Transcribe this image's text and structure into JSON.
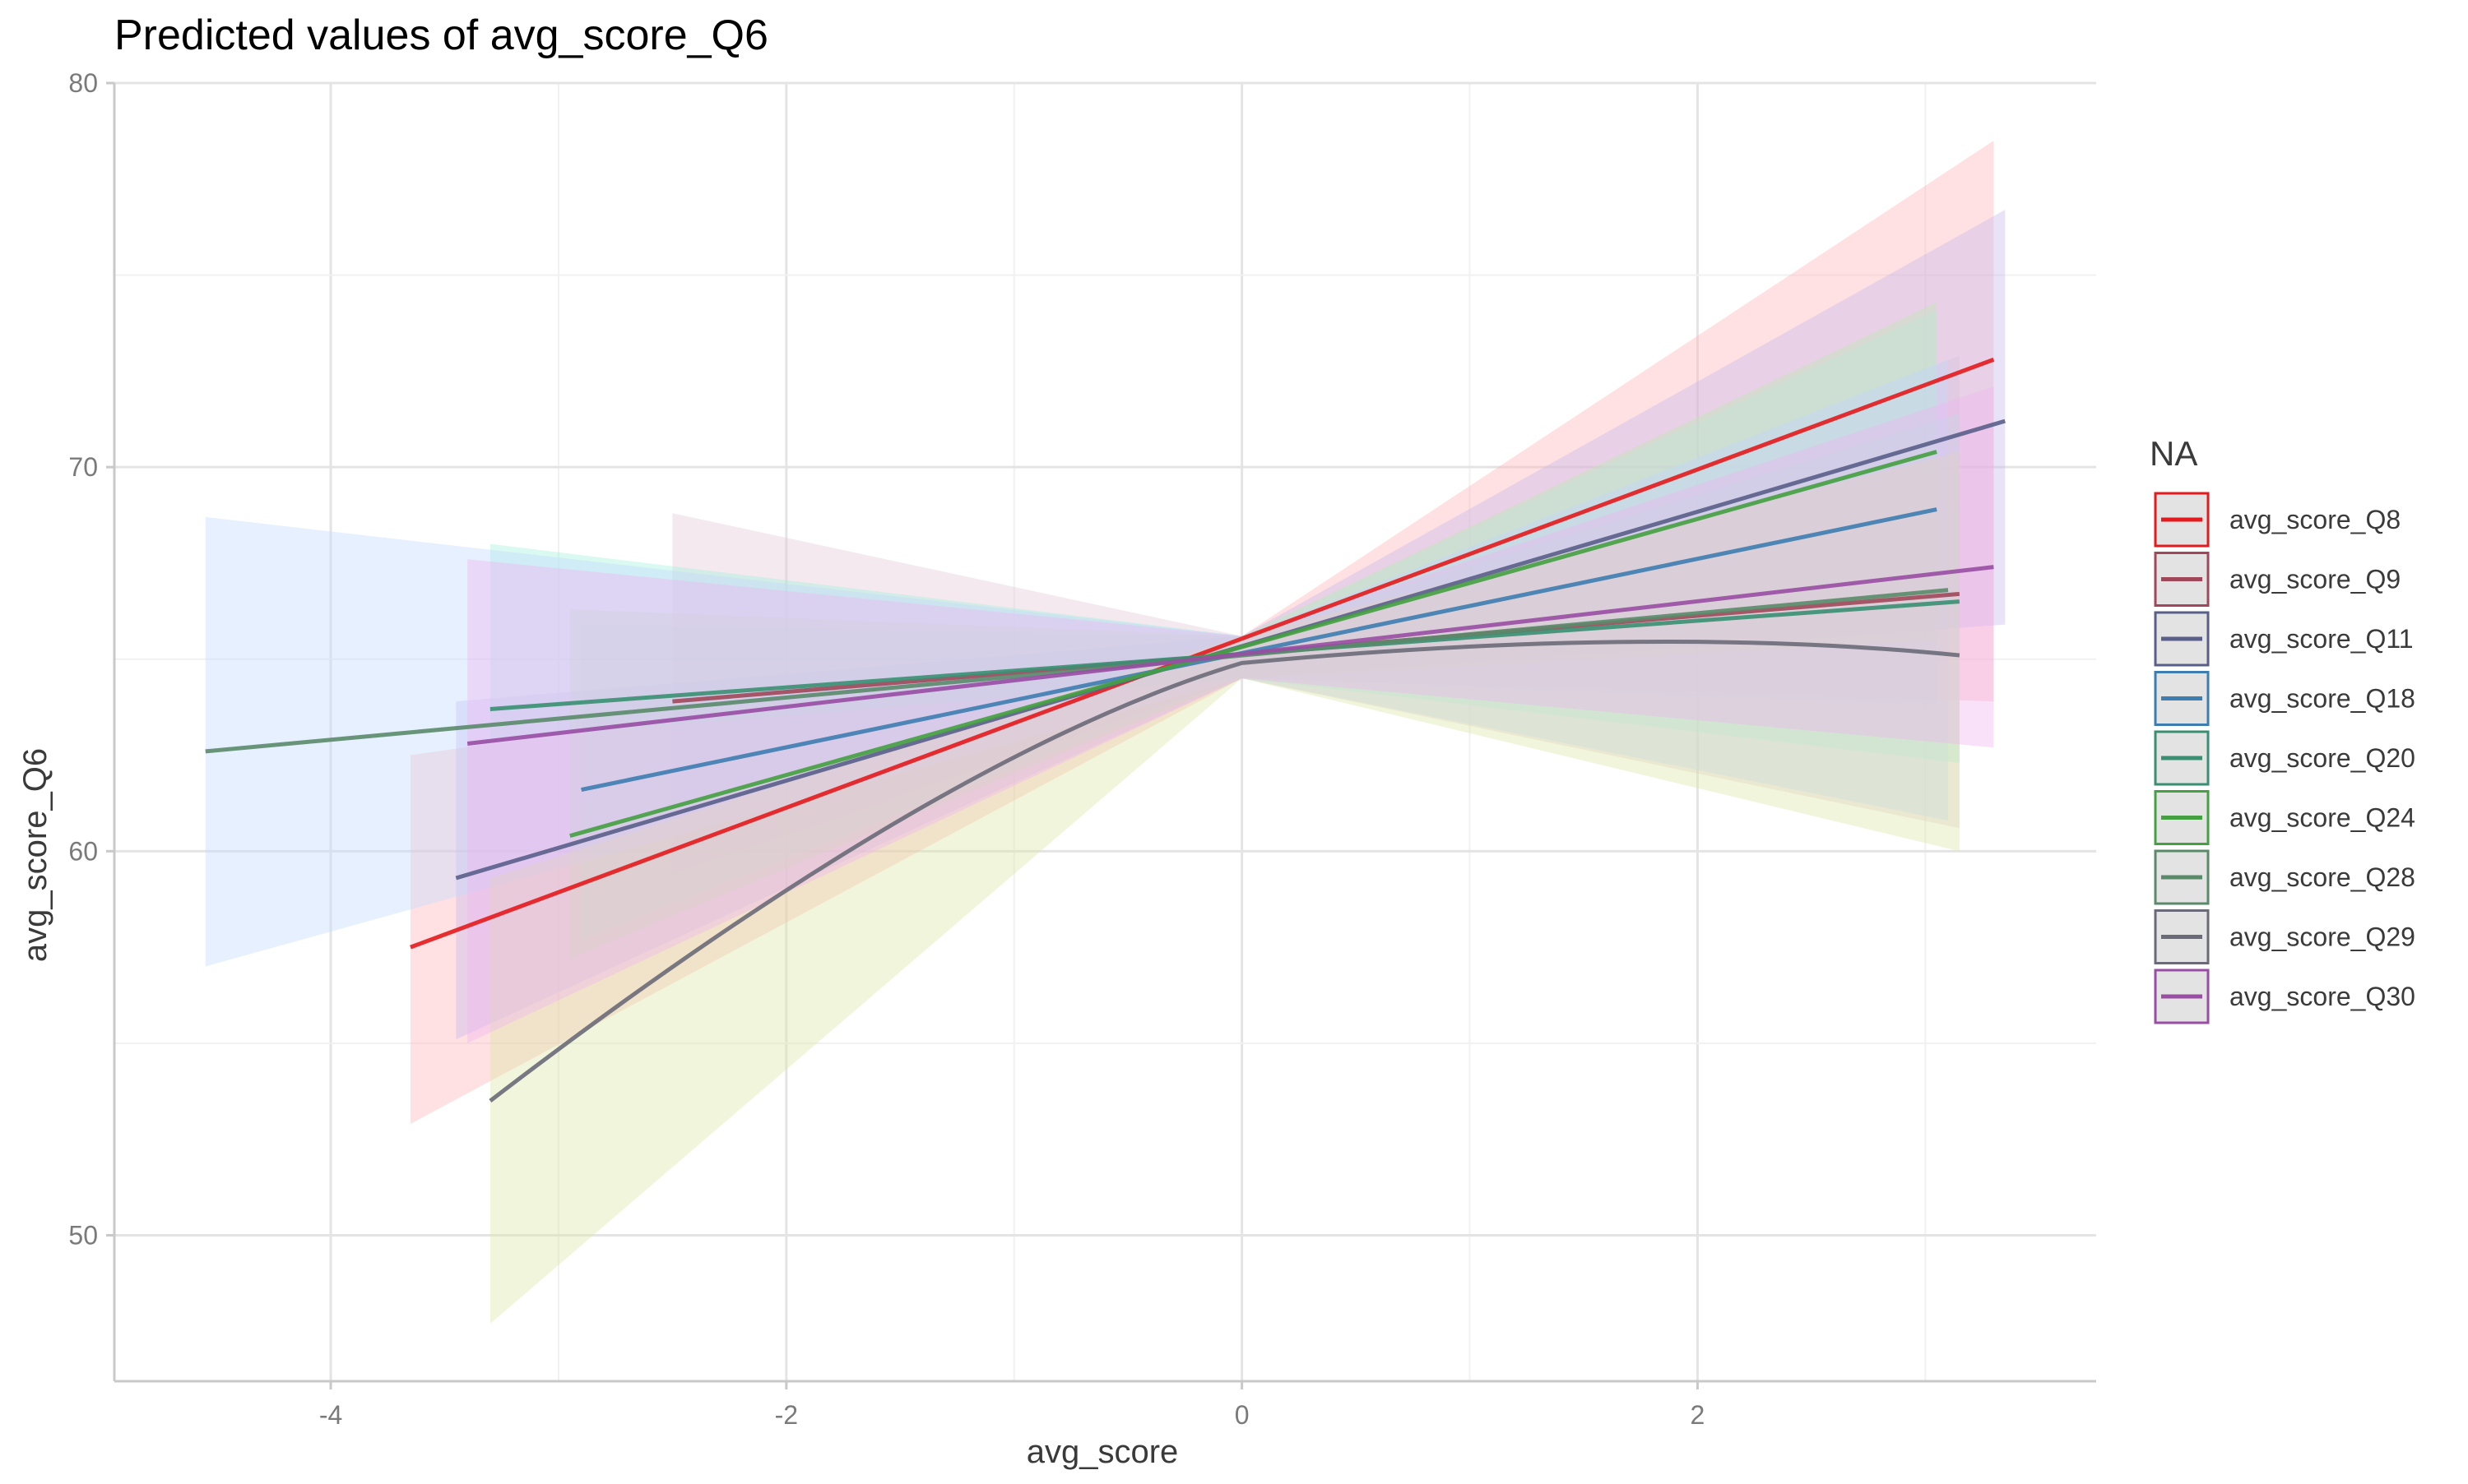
{
  "chart_data": {
    "type": "line",
    "title": "Predicted values of avg_score_Q6",
    "xlabel": "avg_score",
    "ylabel": "avg_score_Q6",
    "xlim": [
      -4.95,
      3.75
    ],
    "ylim": [
      46.2,
      80
    ],
    "x_ticks": [
      -4,
      -2,
      0,
      2
    ],
    "y_ticks": [
      50,
      60,
      70,
      80
    ],
    "grid": true,
    "legend": {
      "title": "NA",
      "placement": "right"
    },
    "series": [
      {
        "name": "avg_score_Q8",
        "color": "#e41a1c",
        "band_color": "#ffb3b8",
        "curve": 0,
        "x": [
          -3.65,
          3.3
        ],
        "y": [
          57.5,
          72.8
        ],
        "lower": [
          52.9,
          63.9
        ],
        "upper": [
          62.5,
          78.5
        ]
      },
      {
        "name": "avg_score_Q9",
        "color": "#a0485a",
        "band_color": "#e0c8d4",
        "curve": 0,
        "x": [
          -2.5,
          3.15
        ],
        "y": [
          63.9,
          66.7
        ],
        "lower": [
          59.4,
          60.6
        ],
        "upper": [
          68.8,
          72.9
        ]
      },
      {
        "name": "avg_score_Q11",
        "color": "#5a5f8a",
        "band_color": "#c6b8ec",
        "curve": 0,
        "x": [
          -3.45,
          3.35
        ],
        "y": [
          59.3,
          71.2
        ],
        "lower": [
          55.1,
          65.9
        ],
        "upper": [
          63.9,
          76.7
        ]
      },
      {
        "name": "avg_score_Q18",
        "color": "#3d7db0",
        "band_color": "#c0e0f4",
        "curve": 0,
        "x": [
          -2.9,
          3.05
        ],
        "y": [
          61.6,
          68.9
        ],
        "lower": [
          57.7,
          63.8
        ],
        "upper": [
          65.9,
          74.1
        ]
      },
      {
        "name": "avg_score_Q20",
        "color": "#3a8f72",
        "band_color": "#a0f0dc",
        "curve": 0,
        "x": [
          -3.3,
          3.15
        ],
        "y": [
          63.7,
          66.5
        ],
        "lower": [
          62.9,
          62.3
        ],
        "upper": [
          68.0,
          71.4
        ]
      },
      {
        "name": "avg_score_Q24",
        "color": "#44a040",
        "band_color": "#bfe8b0",
        "curve": 0,
        "x": [
          -2.95,
          3.05
        ],
        "y": [
          60.4,
          70.4
        ],
        "lower": [
          57.2,
          65.5
        ],
        "upper": [
          66.3,
          74.3
        ]
      },
      {
        "name": "avg_score_Q28",
        "color": "#5a8a6a",
        "band_color": "#c4daff",
        "curve": 0,
        "x": [
          -4.55,
          3.1
        ],
        "y": [
          62.6,
          66.8
        ],
        "lower": [
          57.0,
          60.8
        ],
        "upper": [
          68.7,
          72.8
        ]
      },
      {
        "name": "avg_score_Q29",
        "color": "#6a6a78",
        "band_color": "#dde5a6",
        "curve": 1,
        "x": [
          -3.3,
          3.15
        ],
        "y": [
          53.5,
          65.1
        ],
        "lower": [
          47.7,
          60.0
        ],
        "upper": [
          59.3,
          70.4
        ]
      },
      {
        "name": "avg_score_Q30",
        "color": "#984ea3",
        "band_color": "#f0b4f0",
        "curve": 0,
        "x": [
          -3.4,
          3.3
        ],
        "y": [
          62.8,
          67.4
        ],
        "lower": [
          55.0,
          62.7
        ],
        "upper": [
          67.6,
          72.1
        ]
      }
    ]
  }
}
